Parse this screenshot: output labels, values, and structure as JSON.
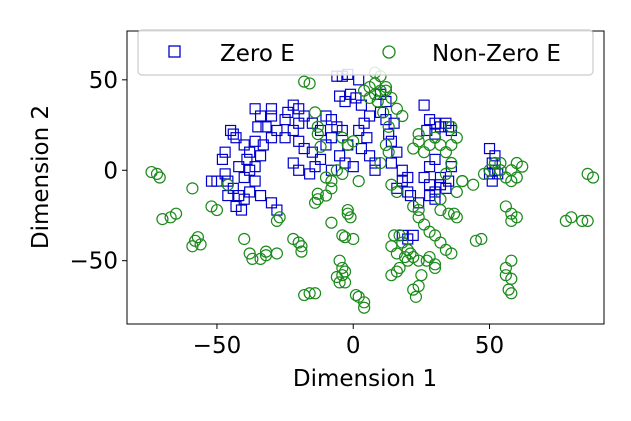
{
  "chart_data": {
    "type": "scatter",
    "title": "",
    "xlabel": "Dimension 1",
    "ylabel": "Dimension 2",
    "xlim": [
      -83,
      92
    ],
    "ylim": [
      -85,
      77
    ],
    "xticks": [
      -50,
      0,
      50
    ],
    "yticks": [
      -50,
      0,
      50
    ],
    "grid": false,
    "legend_position": "top",
    "series": [
      {
        "name": "Zero E",
        "marker": "square",
        "color": "#0000cc",
        "points": [
          [
            -45,
            22
          ],
          [
            -44,
            20
          ],
          [
            -43,
            18
          ],
          [
            -47,
            10
          ],
          [
            -48,
            6
          ],
          [
            -47,
            -2
          ],
          [
            -46,
            -6
          ],
          [
            -50,
            -6
          ],
          [
            -52,
            -6
          ],
          [
            -44,
            -10
          ],
          [
            -42,
            -14
          ],
          [
            -40,
            -16
          ],
          [
            -43,
            -20
          ],
          [
            -41,
            -22
          ],
          [
            -40,
            -4
          ],
          [
            -38,
            0
          ],
          [
            -39,
            6
          ],
          [
            -38,
            10
          ],
          [
            -40,
            14
          ],
          [
            -36,
            16
          ],
          [
            -35,
            24
          ],
          [
            -34,
            30
          ],
          [
            -36,
            34
          ],
          [
            -30,
            34
          ],
          [
            -30,
            30
          ],
          [
            -32,
            24
          ],
          [
            -28,
            22
          ],
          [
            -30,
            18
          ],
          [
            -33,
            14
          ],
          [
            -34,
            8
          ],
          [
            -36,
            2
          ],
          [
            -36,
            -6
          ],
          [
            -38,
            -12
          ],
          [
            -34,
            -14
          ],
          [
            -30,
            -18
          ],
          [
            -28,
            -22
          ],
          [
            -42,
            2
          ],
          [
            -46,
            -14
          ],
          [
            -25,
            28
          ],
          [
            -24,
            32
          ],
          [
            -22,
            36
          ],
          [
            -20,
            34
          ],
          [
            -18,
            30
          ],
          [
            -20,
            26
          ],
          [
            -22,
            22
          ],
          [
            -25,
            18
          ],
          [
            -20,
            16
          ],
          [
            -18,
            12
          ],
          [
            -22,
            4
          ],
          [
            -20,
            0
          ],
          [
            -16,
            -2
          ],
          [
            -14,
            2
          ],
          [
            -12,
            6
          ],
          [
            -15,
            10
          ],
          [
            -10,
            14
          ],
          [
            -8,
            18
          ],
          [
            -12,
            22
          ],
          [
            -15,
            26
          ],
          [
            -10,
            30
          ],
          [
            -8,
            28
          ],
          [
            -6,
            24
          ],
          [
            -4,
            22
          ],
          [
            -2,
            14
          ],
          [
            -5,
            8
          ],
          [
            -8,
            0
          ],
          [
            -3,
            4
          ],
          [
            0,
            2
          ],
          [
            -6,
            52
          ],
          [
            -4,
            52
          ],
          [
            -2,
            53
          ],
          [
            2,
            50
          ],
          [
            -1,
            42
          ],
          [
            1,
            40
          ],
          [
            -3,
            38
          ],
          [
            -5,
            41
          ],
          [
            3,
            36
          ],
          [
            6,
            30
          ],
          [
            4,
            26
          ],
          [
            2,
            22
          ],
          [
            5,
            18
          ],
          [
            3,
            12
          ],
          [
            6,
            8
          ],
          [
            8,
            4
          ],
          [
            8,
            0
          ],
          [
            10,
            42
          ],
          [
            12,
            38
          ],
          [
            10,
            32
          ],
          [
            12,
            28
          ],
          [
            15,
            26
          ],
          [
            13,
            20
          ],
          [
            14,
            16
          ],
          [
            16,
            10
          ],
          [
            14,
            4
          ],
          [
            18,
            0
          ],
          [
            18,
            -6
          ],
          [
            16,
            -10
          ],
          [
            20,
            -12
          ],
          [
            21,
            -14
          ],
          [
            24,
            -18
          ],
          [
            20,
            -4
          ],
          [
            26,
            36
          ],
          [
            28,
            28
          ],
          [
            27,
            22
          ],
          [
            30,
            26
          ],
          [
            32,
            24
          ],
          [
            30,
            20
          ],
          [
            34,
            26
          ],
          [
            30,
            6
          ],
          [
            28,
            2
          ],
          [
            26,
            -4
          ],
          [
            28,
            -8
          ],
          [
            32,
            -8
          ],
          [
            30,
            -12
          ],
          [
            28,
            -14
          ],
          [
            30,
            -16
          ],
          [
            34,
            -10
          ],
          [
            32,
            -4
          ],
          [
            35,
            -6
          ],
          [
            36,
            2
          ],
          [
            35,
            24
          ],
          [
            36,
            22
          ],
          [
            18,
            -36
          ],
          [
            20,
            -38
          ],
          [
            22,
            -36
          ],
          [
            50,
            12
          ],
          [
            52,
            8
          ],
          [
            51,
            4
          ],
          [
            50,
            -2
          ],
          [
            52,
            0
          ],
          [
            51,
            -6
          ],
          [
            53,
            -2
          ]
        ]
      },
      {
        "name": "Non-Zero E",
        "marker": "circle",
        "color": "#1a8a1a",
        "points": [
          [
            -74,
            -1
          ],
          [
            -72,
            -2
          ],
          [
            -71,
            -4
          ],
          [
            -70,
            -27
          ],
          [
            -67,
            -26
          ],
          [
            -65,
            -24
          ],
          [
            -59,
            -10
          ],
          [
            -52,
            -20
          ],
          [
            -50,
            -22
          ],
          [
            -46,
            -8
          ],
          [
            -57,
            -37
          ],
          [
            -58,
            -39
          ],
          [
            -59,
            -42
          ],
          [
            -56,
            -41
          ],
          [
            -40,
            -38
          ],
          [
            -38,
            -46
          ],
          [
            -37,
            -49
          ],
          [
            -32,
            -45
          ],
          [
            -32,
            -47
          ],
          [
            -34,
            -49
          ],
          [
            -28,
            -46
          ],
          [
            -28,
            -28
          ],
          [
            -27,
            -26
          ],
          [
            -22,
            -38
          ],
          [
            -20,
            -40
          ],
          [
            -19,
            -42
          ],
          [
            -19,
            -45
          ],
          [
            -18,
            -69
          ],
          [
            -16,
            -68
          ],
          [
            -14,
            -68
          ],
          [
            -13,
            -13
          ],
          [
            -14,
            -18
          ],
          [
            -13,
            -16
          ],
          [
            -10,
            -14
          ],
          [
            -8,
            -10
          ],
          [
            -8,
            -29
          ],
          [
            -5,
            -50
          ],
          [
            -6,
            -59
          ],
          [
            -5,
            -62
          ],
          [
            -3,
            -62
          ],
          [
            -4,
            -58
          ],
          [
            -3,
            -56
          ],
          [
            -4,
            -54
          ],
          [
            -2,
            -22
          ],
          [
            -2,
            -24
          ],
          [
            -1,
            -26
          ],
          [
            -4,
            -36
          ],
          [
            -3,
            -37
          ],
          [
            0,
            -38
          ],
          [
            1,
            -69
          ],
          [
            2,
            -70
          ],
          [
            4,
            -73
          ],
          [
            4,
            -76
          ],
          [
            -18,
            49
          ],
          [
            -16,
            48
          ],
          [
            -14,
            32
          ],
          [
            -13,
            24
          ],
          [
            -13,
            20
          ],
          [
            -12,
            13
          ],
          [
            -10,
            -4
          ],
          [
            -8,
            -6
          ],
          [
            -6,
            0
          ],
          [
            -4,
            -2
          ],
          [
            -2,
            14
          ],
          [
            -4,
            18
          ],
          [
            0,
            16
          ],
          [
            2,
            -6
          ],
          [
            6,
            40
          ],
          [
            8,
            42
          ],
          [
            10,
            44
          ],
          [
            12,
            46
          ],
          [
            9,
            38
          ],
          [
            11,
            32
          ],
          [
            13,
            24
          ],
          [
            12,
            14
          ],
          [
            13,
            10
          ],
          [
            10,
            4
          ],
          [
            14,
            -8
          ],
          [
            16,
            -12
          ],
          [
            15,
            -36
          ],
          [
            17,
            -36
          ],
          [
            18,
            -40
          ],
          [
            14,
            -42
          ],
          [
            16,
            -46
          ],
          [
            20,
            -44
          ],
          [
            21,
            -46
          ],
          [
            22,
            -48
          ],
          [
            24,
            -50
          ],
          [
            19,
            -48
          ],
          [
            20,
            -50
          ],
          [
            17,
            -54
          ],
          [
            16,
            -56
          ],
          [
            14,
            -58
          ],
          [
            23,
            -70
          ],
          [
            25,
            -58
          ],
          [
            22,
            -66
          ],
          [
            24,
            -64
          ],
          [
            27,
            -50
          ],
          [
            28,
            -48
          ],
          [
            30,
            -52
          ],
          [
            30,
            -54
          ],
          [
            22,
            -20
          ],
          [
            24,
            -22
          ],
          [
            24,
            -26
          ],
          [
            26,
            -30
          ],
          [
            28,
            -34
          ],
          [
            30,
            -36
          ],
          [
            32,
            -40
          ],
          [
            34,
            -44
          ],
          [
            36,
            -46
          ],
          [
            38,
            -26
          ],
          [
            38,
            -12
          ],
          [
            40,
            -6
          ],
          [
            22,
            12
          ],
          [
            24,
            16
          ],
          [
            24,
            20
          ],
          [
            26,
            10
          ],
          [
            28,
            14
          ],
          [
            30,
            18
          ],
          [
            32,
            14
          ],
          [
            34,
            10
          ],
          [
            34,
            -2
          ],
          [
            36,
            4
          ],
          [
            36,
            14
          ],
          [
            36,
            24
          ],
          [
            38,
            18
          ],
          [
            32,
            -16
          ],
          [
            32,
            -22
          ],
          [
            35,
            -24
          ],
          [
            37,
            -24
          ],
          [
            8,
            54
          ],
          [
            10,
            52
          ],
          [
            4,
            44
          ],
          [
            6,
            46
          ],
          [
            8,
            48
          ],
          [
            12,
            44
          ],
          [
            14,
            40
          ],
          [
            16,
            34
          ],
          [
            18,
            30
          ],
          [
            40,
            -6
          ],
          [
            44,
            -8
          ],
          [
            45,
            -39
          ],
          [
            47,
            -38
          ],
          [
            48,
            -2
          ],
          [
            50,
            0
          ],
          [
            52,
            4
          ],
          [
            54,
            4
          ],
          [
            54,
            0
          ],
          [
            56,
            -4
          ],
          [
            58,
            0
          ],
          [
            60,
            4
          ],
          [
            62,
            2
          ],
          [
            60,
            -4
          ],
          [
            58,
            -6
          ],
          [
            56,
            -20
          ],
          [
            58,
            -24
          ],
          [
            58,
            -28
          ],
          [
            60,
            -26
          ],
          [
            56,
            -54
          ],
          [
            56,
            -58
          ],
          [
            58,
            -60
          ],
          [
            57,
            -66
          ],
          [
            58,
            -68
          ],
          [
            78,
            -28
          ],
          [
            80,
            -26
          ],
          [
            84,
            -28
          ],
          [
            86,
            -28
          ],
          [
            86,
            -2
          ],
          [
            88,
            -4
          ],
          [
            58,
            -50
          ]
        ]
      }
    ]
  }
}
